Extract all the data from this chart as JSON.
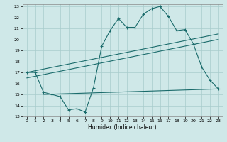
{
  "xlabel": "Humidex (Indice chaleur)",
  "background_color": "#cfe8e8",
  "grid_color": "#a8cccc",
  "line_color": "#1a6b6b",
  "xlim": [
    -0.5,
    23.5
  ],
  "ylim": [
    13,
    23.2
  ],
  "xticks": [
    0,
    1,
    2,
    3,
    4,
    5,
    6,
    7,
    8,
    9,
    10,
    11,
    12,
    13,
    14,
    15,
    16,
    17,
    18,
    19,
    20,
    21,
    22,
    23
  ],
  "yticks": [
    13,
    14,
    15,
    16,
    17,
    18,
    19,
    20,
    21,
    22,
    23
  ],
  "series1_x": [
    0,
    1,
    2,
    3,
    4,
    5,
    6,
    7,
    8,
    9,
    10,
    11,
    12,
    13,
    14,
    15,
    16,
    17,
    18,
    19,
    20,
    21,
    22,
    23
  ],
  "series1_y": [
    17.0,
    17.0,
    15.2,
    15.0,
    14.8,
    13.6,
    13.7,
    13.4,
    15.6,
    19.4,
    20.8,
    21.9,
    21.1,
    21.1,
    22.3,
    22.8,
    23.0,
    22.1,
    20.8,
    20.9,
    19.6,
    17.5,
    16.3,
    15.5
  ],
  "series2_x": [
    0,
    23
  ],
  "series2_y": [
    17.0,
    20.5
  ],
  "series3_x": [
    0,
    23
  ],
  "series3_y": [
    16.5,
    20.0
  ],
  "series4_x": [
    2,
    23
  ],
  "series4_y": [
    15.0,
    15.5
  ]
}
